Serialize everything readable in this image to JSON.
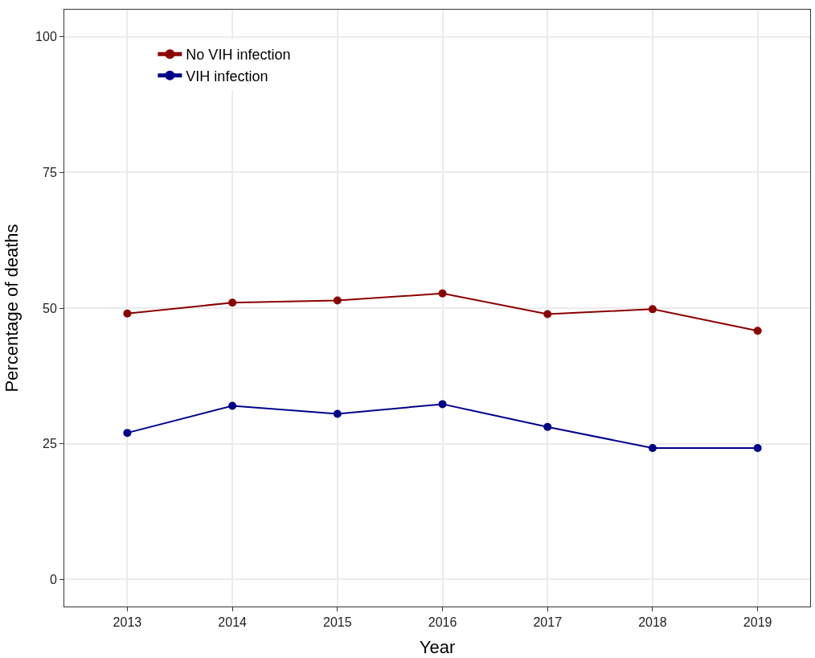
{
  "chart_data": {
    "type": "line",
    "xlabel": "Year",
    "ylabel": "Percentage of deaths",
    "x": [
      2013,
      2014,
      2015,
      2016,
      2017,
      2018,
      2019
    ],
    "series": [
      {
        "name": "No VIH infection",
        "color": "#8b0000",
        "values": [
          49.0,
          51.0,
          51.4,
          52.7,
          48.9,
          49.8,
          45.8
        ]
      },
      {
        "name": "VIH infection",
        "color": "#00008b",
        "values": [
          27.0,
          32.0,
          30.5,
          32.3,
          28.1,
          24.2,
          24.2
        ]
      }
    ],
    "xlim": [
      2012.4,
      2019.5
    ],
    "xticks": [
      2013,
      2014,
      2015,
      2016,
      2017,
      2018,
      2019
    ],
    "ylim": [
      -5,
      105
    ],
    "yticks": [
      0,
      25,
      50,
      75,
      100
    ],
    "grid": true,
    "legend": "top left",
    "marker": "circle",
    "line_style": "solid"
  }
}
